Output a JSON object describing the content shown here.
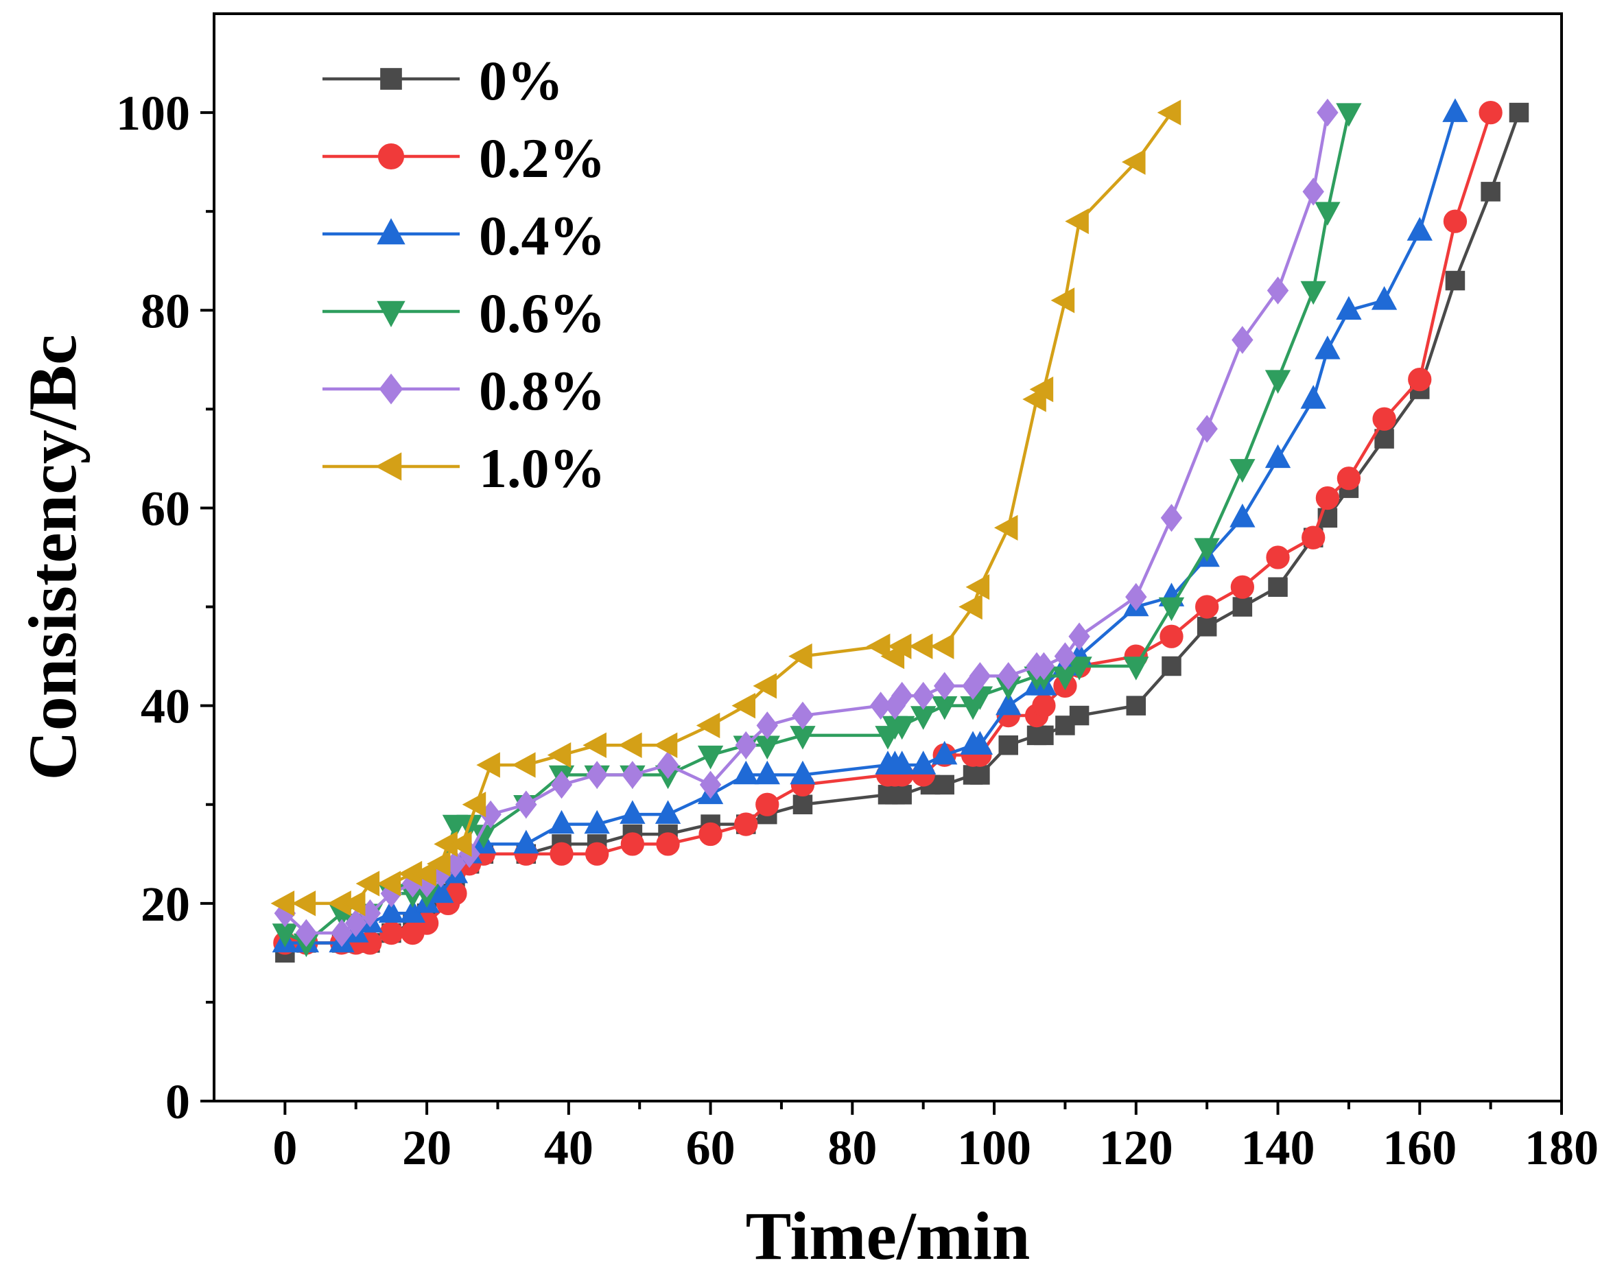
{
  "chart_data": {
    "type": "line",
    "title": "",
    "xlabel": "Time/min",
    "ylabel": "Consistency/Bc",
    "xlim": [
      -10,
      180
    ],
    "ylim": [
      0,
      110
    ],
    "x_ticks": [
      "0",
      "20",
      "40",
      "60",
      "80",
      "100",
      "120",
      "140",
      "160",
      "180"
    ],
    "y_ticks": [
      "0",
      "20",
      "40",
      "60",
      "80",
      "100"
    ],
    "legend_position": "top-left",
    "series": [
      {
        "name": "0%",
        "color": "#4a4a4a",
        "marker": "square",
        "points": [
          [
            0,
            15
          ],
          [
            3,
            16
          ],
          [
            8,
            16
          ],
          [
            10,
            16
          ],
          [
            12,
            16
          ],
          [
            15,
            17
          ],
          [
            18,
            18
          ],
          [
            20,
            19
          ],
          [
            22,
            21
          ],
          [
            24,
            22
          ],
          [
            26,
            24
          ],
          [
            28,
            25
          ],
          [
            34,
            25
          ],
          [
            39,
            26
          ],
          [
            44,
            26
          ],
          [
            49,
            27
          ],
          [
            54,
            27
          ],
          [
            60,
            28
          ],
          [
            65,
            28
          ],
          [
            68,
            29
          ],
          [
            73,
            30
          ],
          [
            85,
            31
          ],
          [
            86,
            31
          ],
          [
            87,
            31
          ],
          [
            91,
            32
          ],
          [
            93,
            32
          ],
          [
            97,
            33
          ],
          [
            98,
            33
          ],
          [
            102,
            36
          ],
          [
            106,
            37
          ],
          [
            107,
            37
          ],
          [
            110,
            38
          ],
          [
            112,
            39
          ],
          [
            120,
            40
          ],
          [
            125,
            44
          ],
          [
            130,
            48
          ],
          [
            135,
            50
          ],
          [
            140,
            52
          ],
          [
            145,
            57
          ],
          [
            147,
            59
          ],
          [
            150,
            62
          ],
          [
            155,
            67
          ],
          [
            160,
            72
          ],
          [
            165,
            83
          ],
          [
            170,
            92
          ],
          [
            174,
            100
          ]
        ]
      },
      {
        "name": "0.2%",
        "color": "#f03a3a",
        "marker": "circle",
        "points": [
          [
            0,
            16
          ],
          [
            3,
            16
          ],
          [
            8,
            16
          ],
          [
            10,
            16
          ],
          [
            12,
            16
          ],
          [
            15,
            17
          ],
          [
            18,
            17
          ],
          [
            20,
            18
          ],
          [
            23,
            20
          ],
          [
            24,
            21
          ],
          [
            26,
            24
          ],
          [
            28,
            25
          ],
          [
            34,
            25
          ],
          [
            39,
            25
          ],
          [
            44,
            25
          ],
          [
            49,
            26
          ],
          [
            54,
            26
          ],
          [
            60,
            27
          ],
          [
            65,
            28
          ],
          [
            68,
            30
          ],
          [
            73,
            32
          ],
          [
            85,
            33
          ],
          [
            86,
            33
          ],
          [
            87,
            33
          ],
          [
            90,
            33
          ],
          [
            93,
            35
          ],
          [
            97,
            35
          ],
          [
            98,
            35
          ],
          [
            102,
            39
          ],
          [
            106,
            39
          ],
          [
            107,
            40
          ],
          [
            110,
            42
          ],
          [
            112,
            44
          ],
          [
            120,
            45
          ],
          [
            125,
            47
          ],
          [
            130,
            50
          ],
          [
            135,
            52
          ],
          [
            140,
            55
          ],
          [
            145,
            57
          ],
          [
            147,
            61
          ],
          [
            150,
            63
          ],
          [
            155,
            69
          ],
          [
            160,
            73
          ],
          [
            165,
            89
          ],
          [
            170,
            100
          ]
        ]
      },
      {
        "name": "0.4%",
        "color": "#1f6ad6",
        "marker": "triangle-up",
        "points": [
          [
            0,
            16
          ],
          [
            3,
            16
          ],
          [
            8,
            16
          ],
          [
            10,
            17
          ],
          [
            12,
            18
          ],
          [
            15,
            19
          ],
          [
            18,
            19
          ],
          [
            20,
            20
          ],
          [
            22,
            21
          ],
          [
            24,
            23
          ],
          [
            26,
            25
          ],
          [
            28,
            26
          ],
          [
            34,
            26
          ],
          [
            39,
            28
          ],
          [
            44,
            28
          ],
          [
            49,
            29
          ],
          [
            54,
            29
          ],
          [
            60,
            31
          ],
          [
            65,
            33
          ],
          [
            68,
            33
          ],
          [
            73,
            33
          ],
          [
            85,
            34
          ],
          [
            86,
            34
          ],
          [
            87,
            34
          ],
          [
            90,
            34
          ],
          [
            93,
            35
          ],
          [
            97,
            36
          ],
          [
            98,
            36
          ],
          [
            102,
            40
          ],
          [
            106,
            42
          ],
          [
            107,
            42
          ],
          [
            110,
            44
          ],
          [
            112,
            45
          ],
          [
            120,
            50
          ],
          [
            125,
            51
          ],
          [
            130,
            55
          ],
          [
            135,
            59
          ],
          [
            140,
            65
          ],
          [
            145,
            71
          ],
          [
            147,
            76
          ],
          [
            150,
            80
          ],
          [
            155,
            81
          ],
          [
            160,
            88
          ],
          [
            165,
            100
          ]
        ]
      },
      {
        "name": "0.6%",
        "color": "#2e9e5e",
        "marker": "triangle-down",
        "points": [
          [
            0,
            17
          ],
          [
            3,
            16
          ],
          [
            8,
            19
          ],
          [
            10,
            18
          ],
          [
            12,
            19
          ],
          [
            15,
            21
          ],
          [
            18,
            21
          ],
          [
            20,
            21
          ],
          [
            22,
            23
          ],
          [
            24,
            28
          ],
          [
            26,
            28
          ],
          [
            28,
            27
          ],
          [
            34,
            30
          ],
          [
            39,
            33
          ],
          [
            44,
            33
          ],
          [
            49,
            33
          ],
          [
            54,
            33
          ],
          [
            60,
            35
          ],
          [
            65,
            36
          ],
          [
            68,
            36
          ],
          [
            73,
            37
          ],
          [
            85,
            37
          ],
          [
            86,
            38
          ],
          [
            87,
            38
          ],
          [
            90,
            39
          ],
          [
            93,
            40
          ],
          [
            97,
            40
          ],
          [
            98,
            41
          ],
          [
            102,
            42
          ],
          [
            106,
            43
          ],
          [
            107,
            43
          ],
          [
            110,
            43
          ],
          [
            112,
            44
          ],
          [
            120,
            44
          ],
          [
            125,
            50
          ],
          [
            130,
            56
          ],
          [
            135,
            64
          ],
          [
            140,
            73
          ],
          [
            145,
            82
          ],
          [
            147,
            90
          ],
          [
            150,
            100
          ]
        ]
      },
      {
        "name": "0.8%",
        "color": "#a77ee0",
        "marker": "diamond",
        "points": [
          [
            0,
            19
          ],
          [
            3,
            17
          ],
          [
            8,
            17
          ],
          [
            10,
            18
          ],
          [
            12,
            19
          ],
          [
            15,
            21
          ],
          [
            18,
            22
          ],
          [
            20,
            22
          ],
          [
            22,
            23
          ],
          [
            24,
            24
          ],
          [
            26,
            25
          ],
          [
            29,
            29
          ],
          [
            34,
            30
          ],
          [
            39,
            32
          ],
          [
            44,
            33
          ],
          [
            49,
            33
          ],
          [
            54,
            34
          ],
          [
            60,
            32
          ],
          [
            65,
            36
          ],
          [
            68,
            38
          ],
          [
            73,
            39
          ],
          [
            84,
            40
          ],
          [
            86,
            40
          ],
          [
            87,
            41
          ],
          [
            90,
            41
          ],
          [
            93,
            42
          ],
          [
            97,
            42
          ],
          [
            98,
            43
          ],
          [
            102,
            43
          ],
          [
            106,
            44
          ],
          [
            107,
            44
          ],
          [
            110,
            45
          ],
          [
            112,
            47
          ],
          [
            120,
            51
          ],
          [
            125,
            59
          ],
          [
            130,
            68
          ],
          [
            135,
            77
          ],
          [
            140,
            82
          ],
          [
            145,
            92
          ],
          [
            147,
            100
          ]
        ]
      },
      {
        "name": "1.0%",
        "color": "#d4a017",
        "marker": "triangle-left",
        "points": [
          [
            0,
            20
          ],
          [
            3,
            20
          ],
          [
            8,
            20
          ],
          [
            10,
            20
          ],
          [
            12,
            22
          ],
          [
            15,
            22
          ],
          [
            18,
            23
          ],
          [
            20,
            23
          ],
          [
            22,
            24
          ],
          [
            23,
            26
          ],
          [
            25,
            26
          ],
          [
            27,
            30
          ],
          [
            29,
            34
          ],
          [
            34,
            34
          ],
          [
            39,
            35
          ],
          [
            44,
            36
          ],
          [
            49,
            36
          ],
          [
            54,
            36
          ],
          [
            60,
            38
          ],
          [
            65,
            40
          ],
          [
            68,
            42
          ],
          [
            73,
            45
          ],
          [
            84,
            46
          ],
          [
            86,
            45
          ],
          [
            87,
            46
          ],
          [
            90,
            46
          ],
          [
            93,
            46
          ],
          [
            97,
            50
          ],
          [
            98,
            52
          ],
          [
            102,
            58
          ],
          [
            106,
            71
          ],
          [
            107,
            72
          ],
          [
            110,
            81
          ],
          [
            112,
            89
          ],
          [
            120,
            95
          ],
          [
            125,
            100
          ]
        ]
      }
    ]
  }
}
